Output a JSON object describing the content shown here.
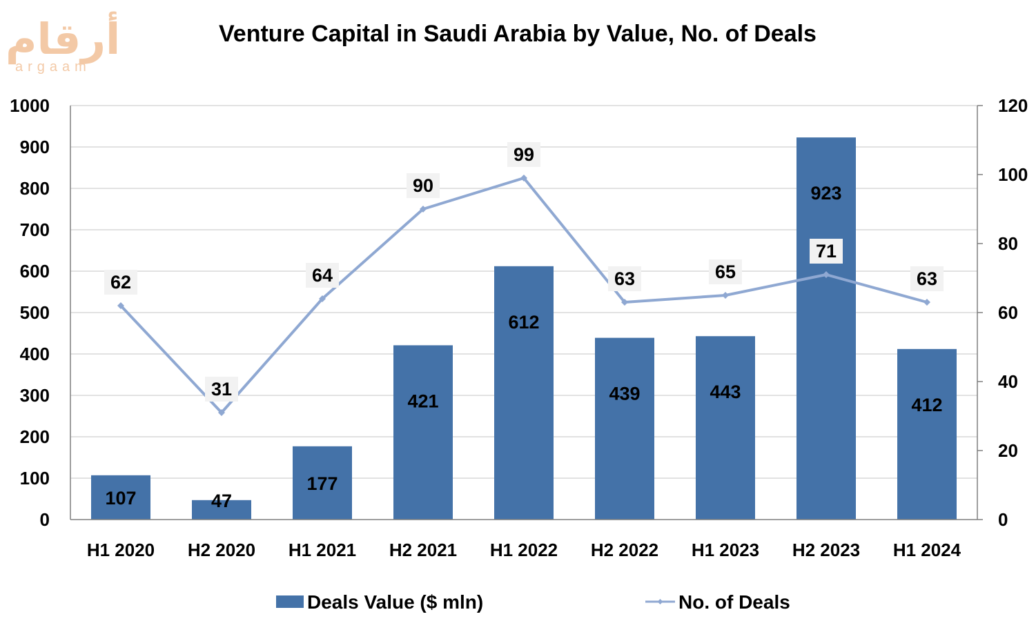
{
  "logo": {
    "arabic": "أرقام",
    "latin": "argaam"
  },
  "colors": {
    "bar": "#4472a8",
    "line": "#8fa8d2",
    "grid": "#d9d9d9",
    "axis": "#7f7f7f",
    "label_box": "#f2f2f2"
  },
  "chart_data": {
    "type": "bar",
    "title": "Venture Capital in Saudi Arabia by Value, No. of Deals",
    "categories": [
      "H1 2020",
      "H2 2020",
      "H1 2021",
      "H2 2021",
      "H1 2022",
      "H2 2022",
      "H1 2023",
      "H2 2023",
      "H1 2024"
    ],
    "series": [
      {
        "name": "Deals Value ($ mln)",
        "type": "bar",
        "axis": "left",
        "values": [
          107,
          47,
          177,
          421,
          612,
          439,
          443,
          923,
          412
        ]
      },
      {
        "name": "No. of Deals",
        "type": "line",
        "axis": "right",
        "values": [
          62,
          31,
          64,
          90,
          99,
          63,
          65,
          71,
          63
        ]
      }
    ],
    "y_left": {
      "min": 0,
      "max": 1000,
      "step": 100,
      "ticks": [
        "0",
        "100",
        "200",
        "300",
        "400",
        "500",
        "600",
        "700",
        "800",
        "900",
        "1000"
      ]
    },
    "y_right": {
      "min": 0,
      "max": 120,
      "step": 20,
      "ticks": [
        "0",
        "20",
        "40",
        "60",
        "80",
        "100",
        "120"
      ]
    },
    "grid": true,
    "legend_position": "bottom"
  }
}
